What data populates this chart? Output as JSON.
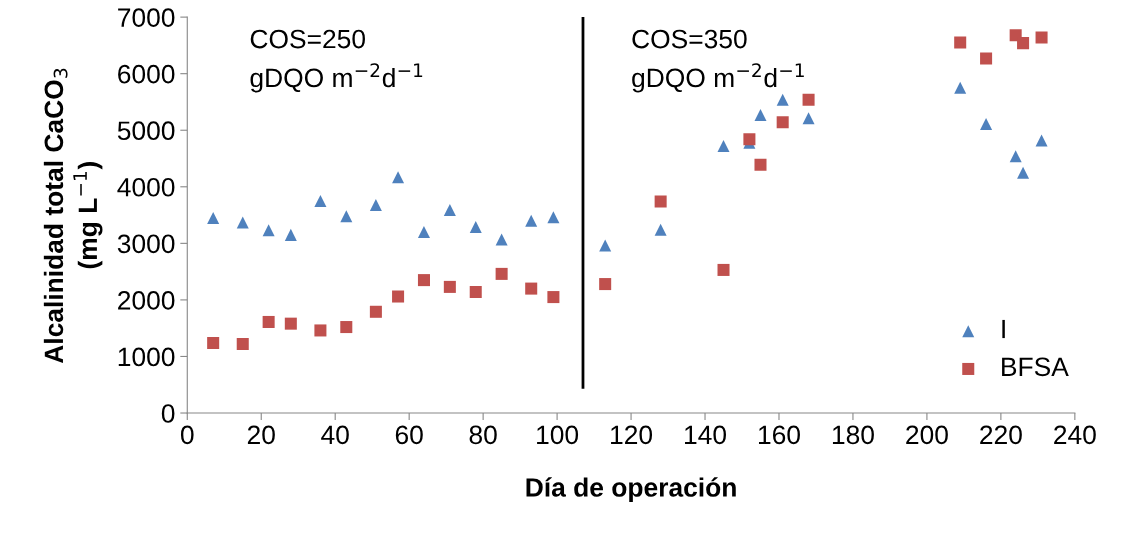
{
  "chart_data": {
    "type": "scatter",
    "xlabel": "Día de operación",
    "ylabel": "Alcalinidad total CaCO$_{3}$\n(mg L$^{−1}$)",
    "x": [
      7,
      15,
      22,
      28,
      36,
      43,
      51,
      57,
      64,
      71,
      78,
      85,
      93,
      99,
      113,
      128,
      145,
      152,
      155,
      161,
      168,
      209,
      216,
      224,
      226,
      231
    ],
    "series": [
      {
        "name": "I",
        "color": "#4f81bd",
        "marker": "triangle",
        "values": [
          3450,
          3370,
          3230,
          3150,
          3750,
          3480,
          3680,
          4170,
          3200,
          3590,
          3290,
          3070,
          3400,
          3460,
          2960,
          3240,
          4720,
          4780,
          5270,
          5540,
          5210,
          5750,
          5110,
          4540,
          4250,
          4820
        ]
      },
      {
        "name": "BFSA",
        "color": "#c0504d",
        "marker": "square",
        "values": [
          1240,
          1220,
          1610,
          1580,
          1460,
          1520,
          1790,
          2060,
          2350,
          2230,
          2140,
          2460,
          2200,
          2050,
          2280,
          3740,
          2530,
          4840,
          4390,
          5140,
          5540,
          6550,
          6270,
          6680,
          6540,
          6640
        ]
      }
    ],
    "xlim": [
      0,
      240
    ],
    "xticks": [
      0,
      20,
      40,
      60,
      80,
      100,
      120,
      140,
      160,
      180,
      200,
      220,
      240
    ],
    "ylim": [
      0,
      7000
    ],
    "yticks": [
      0,
      1000,
      2000,
      3000,
      4000,
      5000,
      6000,
      7000
    ],
    "ref_lines": [
      {
        "axis": "x",
        "value": 107,
        "color": "#000000"
      }
    ],
    "annotations": [
      "COS=250\ngDQO m$^{−2}$d$^{−1}$",
      "COS=350\ngDQO m$^{−2}$d$^{−1}$"
    ],
    "grid": false,
    "legend": "bottom right"
  }
}
